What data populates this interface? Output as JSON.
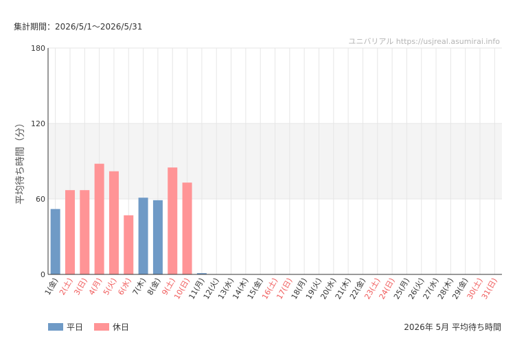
{
  "period_label": "集計期間：2026/5/1～2026/5/31",
  "watermark": "ユニバリアル  https://usjreal.asumirai.info",
  "footer_title": "2026年 5月 平均待ち時間",
  "colors": {
    "weekday": "#6f9ac6",
    "holiday": "#ff9496",
    "holiday_text": "#f05a5a",
    "band": "#f4f4f4"
  },
  "chart_data": {
    "type": "bar",
    "ylabel": "平均待ち時間（分）",
    "ylim": [
      0,
      180
    ],
    "yticks": [
      0,
      60,
      120,
      180
    ],
    "shaded_band": [
      60,
      120
    ],
    "grid": true,
    "legend_position": "bottom-left",
    "categories": [
      "1(金)",
      "2(土)",
      "3(日)",
      "4(月)",
      "5(火)",
      "6(水)",
      "7(木)",
      "8(金)",
      "9(土)",
      "10(日)",
      "11(月)",
      "12(火)",
      "13(水)",
      "14(木)",
      "15(金)",
      "16(土)",
      "17(日)",
      "18(月)",
      "19(火)",
      "20(水)",
      "21(木)",
      "22(金)",
      "23(土)",
      "24(日)",
      "25(月)",
      "26(火)",
      "27(水)",
      "28(木)",
      "29(金)",
      "30(土)",
      "31(日)"
    ],
    "day_types": [
      "平日",
      "休日",
      "休日",
      "休日",
      "休日",
      "休日",
      "平日",
      "平日",
      "休日",
      "休日",
      "平日",
      "平日",
      "平日",
      "平日",
      "平日",
      "休日",
      "休日",
      "平日",
      "平日",
      "平日",
      "平日",
      "平日",
      "休日",
      "休日",
      "平日",
      "平日",
      "平日",
      "平日",
      "平日",
      "休日",
      "休日"
    ],
    "values": [
      52,
      67,
      67,
      88,
      82,
      47,
      61,
      59,
      85,
      73,
      1,
      0,
      0,
      0,
      0,
      0,
      0,
      0,
      0,
      0,
      0,
      0,
      0,
      0,
      0,
      0,
      0,
      0,
      0,
      0,
      0
    ],
    "series": [
      {
        "name": "平日",
        "color": "#6f9ac6"
      },
      {
        "name": "休日",
        "color": "#ff9496"
      }
    ]
  }
}
